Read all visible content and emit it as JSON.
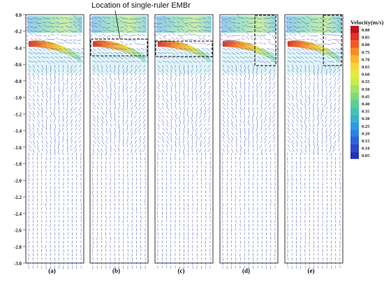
{
  "annotation": "Location of single-ruler EMBr",
  "y_axis": {
    "ticks": [
      "0.0",
      "-0.2",
      "-0.4",
      "-0.6",
      "-0.8",
      "-1.0",
      "-1.2",
      "-1.4",
      "-1.6",
      "-1.8",
      "-2.0",
      "-2.2",
      "-2.4",
      "-2.6",
      "-2.8",
      "-3.0"
    ]
  },
  "panels": [
    {
      "label": "(a)",
      "embr_box": "none"
    },
    {
      "label": "(b)",
      "embr_box": "horizontal band near meniscus"
    },
    {
      "label": "(c)",
      "embr_box": "horizontal band below nozzle"
    },
    {
      "label": "(d)",
      "embr_box": "vertical band near narrow face"
    },
    {
      "label": "(e)",
      "embr_box": "vertical band near narrow face"
    }
  ],
  "colorbar": {
    "title": "Velocity(m/s)",
    "ticks": [
      "0.88",
      "0.85",
      "0.80",
      "0.75",
      "0.70",
      "0.65",
      "0.60",
      "0.55",
      "0.50",
      "0.45",
      "0.40",
      "0.35",
      "0.30",
      "0.25",
      "0.20",
      "0.15",
      "0.10",
      "0.05"
    ],
    "colors": [
      "#c0121c",
      "#e8321e",
      "#f55a1e",
      "#fb8a22",
      "#fcb72a",
      "#f7d634",
      "#e6ea3a",
      "#c7ee46",
      "#a2e65a",
      "#7edb73",
      "#5dcf92",
      "#45c3b0",
      "#36b2cb",
      "#2d9be0",
      "#2b80e8",
      "#2a62e0",
      "#2a47cf",
      "#2232b8"
    ]
  }
}
